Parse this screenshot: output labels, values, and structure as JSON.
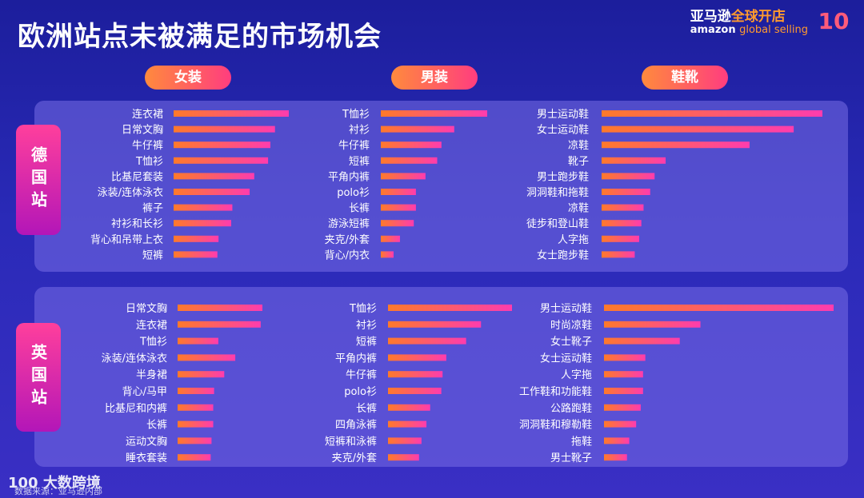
{
  "header": {
    "title": "欧洲站点未被满足的市场机会",
    "brand_cn_a": "亚马逊",
    "brand_cn_b": "全球开店",
    "brand_en_a": "amazon",
    "brand_en_b": "global selling",
    "badge": "10"
  },
  "footer": {
    "logo": "100 大数跨境",
    "source": "数据来源：亚马逊内部"
  },
  "colors": {
    "bar_start": "#ff7a2a",
    "bar_end": "#ff3cae"
  },
  "chart_data": [
    {
      "type": "bar",
      "orientation": "horizontal",
      "region": "德国站",
      "title": "女装",
      "categories": [
        "连衣裙",
        "日常文胸",
        "牛仔裤",
        "T恤衫",
        "比基尼套装",
        "泳装/连体泳衣",
        "裤子",
        "衬衫和长衫",
        "背心和吊带上衣",
        "短裤"
      ],
      "values": [
        100,
        88,
        84,
        82,
        70,
        66,
        51,
        50,
        39,
        38
      ]
    },
    {
      "type": "bar",
      "orientation": "horizontal",
      "region": "德国站",
      "title": "男装",
      "categories": [
        "T恤衫",
        "衬衫",
        "牛仔裤",
        "短裤",
        "平角内裤",
        "polo衫",
        "长裤",
        "游泳短裤",
        "夹克/外套",
        "背心/内衣"
      ],
      "values": [
        100,
        69,
        57,
        53,
        42,
        33,
        33,
        31,
        18,
        12
      ]
    },
    {
      "type": "bar",
      "orientation": "horizontal",
      "region": "德国站",
      "title": "鞋靴",
      "categories": [
        "男士运动鞋",
        "女士运动鞋",
        "凉鞋",
        "靴子",
        "男士跑步鞋",
        "洞洞鞋和拖鞋",
        "凉鞋",
        "徒步和登山鞋",
        "人字拖",
        "女士跑步鞋"
      ],
      "values": [
        100,
        87,
        67,
        29,
        24,
        22,
        19,
        18,
        17,
        15
      ]
    },
    {
      "type": "bar",
      "orientation": "horizontal",
      "region": "英国站",
      "title": "女装",
      "categories": [
        "日常文胸",
        "连衣裙",
        "T恤衫",
        "泳装/连体泳衣",
        "半身裙",
        "背心/马甲",
        "比基尼和内裤",
        "长裤",
        "运动文胸",
        "睡衣套装"
      ],
      "values": [
        100,
        98,
        48,
        68,
        55,
        43,
        42,
        42,
        40,
        39
      ]
    },
    {
      "type": "bar",
      "orientation": "horizontal",
      "region": "英国站",
      "title": "男装",
      "categories": [
        "T恤衫",
        "衬衫",
        "短裤",
        "平角内裤",
        "牛仔裤",
        "polo衫",
        "长裤",
        "四角泳裤",
        "短裤和泳裤",
        "夹克/外套"
      ],
      "values": [
        100,
        75,
        63,
        47,
        44,
        43,
        34,
        31,
        27,
        25
      ]
    },
    {
      "type": "bar",
      "orientation": "horizontal",
      "region": "英国站",
      "title": "鞋靴",
      "categories": [
        "男士运动鞋",
        "时尚凉鞋",
        "女士靴子",
        "女士运动鞋",
        "人字拖",
        "工作鞋和功能鞋",
        "公路跑鞋",
        "洞洞鞋和穆勒鞋",
        "拖鞋",
        "男士靴子"
      ],
      "values": [
        100,
        42,
        33,
        18,
        17,
        17,
        16,
        14,
        11,
        10
      ]
    }
  ]
}
